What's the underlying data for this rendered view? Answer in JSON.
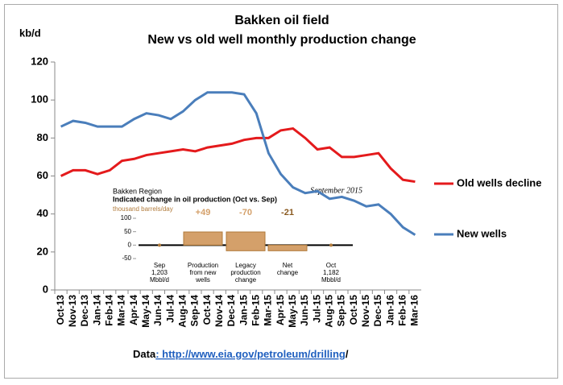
{
  "chart_data": {
    "type": "line",
    "title": "Bakken oil field",
    "subtitle": "New vs old well monthly production change",
    "y_label": "kb/d",
    "categories": [
      "Oct-13",
      "Nov-13",
      "Dec-13",
      "Jan-14",
      "Feb-14",
      "Mar-14",
      "Apr-14",
      "May-14",
      "Jun-14",
      "Jul-14",
      "Aug-14",
      "Sep-14",
      "Oct-14",
      "Nov-14",
      "Dec-14",
      "Jan-15",
      "Feb-15",
      "Mar-15",
      "Apr-15",
      "May-15",
      "Jun-15",
      "Jul-15",
      "Aug-15",
      "Sep-15",
      "Oct-15",
      "Nov-15",
      "Dec-15",
      "Jan-16",
      "Feb-16",
      "Mar-16"
    ],
    "series": [
      {
        "name": "Old wells decline",
        "color": "#e41a1c",
        "values": [
          60,
          63,
          63,
          61,
          63,
          68,
          69,
          71,
          72,
          73,
          74,
          73,
          75,
          76,
          77,
          79,
          80,
          80,
          84,
          85,
          80,
          74,
          75,
          70,
          70,
          71,
          72,
          64,
          58,
          57
        ]
      },
      {
        "name": "New wells",
        "color": "#4a7ebb",
        "values": [
          86,
          89,
          88,
          86,
          86,
          86,
          90,
          93,
          92,
          90,
          94,
          100,
          104,
          104,
          104,
          103,
          93,
          72,
          61,
          54,
          51,
          52,
          48,
          49,
          47,
          44,
          45,
          40,
          33,
          29
        ]
      }
    ],
    "ylim": [
      0,
      120
    ],
    "yticks": [
      0,
      20,
      40,
      60,
      80,
      100,
      120
    ],
    "grid": false,
    "legend": "right",
    "source": {
      "label": "Data",
      "url": ": http://www.eia.gov/petroleum/drilling",
      "suffix": "/"
    },
    "inset": {
      "type": "waterfall",
      "title": "Bakken Region",
      "subtitle": "Indicated change in oil production (Oct vs. Sep)",
      "units": "thousand barrels/day",
      "date": "September 2015",
      "categories": [
        "Sep 1,203 Mbbl/d",
        "Production from new wells",
        "Legacy production change",
        "Net change",
        "Oct 1,182 Mbbl/d"
      ],
      "values": [
        null,
        49,
        -70,
        -21,
        null
      ],
      "value_labels": [
        null,
        "+49",
        "-70",
        "-21",
        null
      ],
      "ylim": [
        -60,
        110
      ],
      "yticks": [
        100,
        50,
        0,
        -50
      ]
    }
  }
}
